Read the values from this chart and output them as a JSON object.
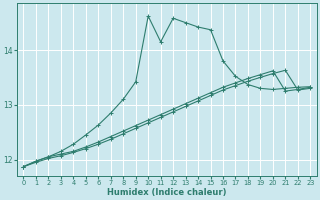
{
  "xlabel": "Humidex (Indice chaleur)",
  "bg_color": "#cce8ee",
  "grid_color": "#ffffff",
  "line_color": "#2e7d6e",
  "xlim": [
    -0.5,
    23.5
  ],
  "ylim": [
    11.7,
    14.85
  ],
  "yticks": [
    12,
    13,
    14
  ],
  "xticks": [
    0,
    1,
    2,
    3,
    4,
    5,
    6,
    7,
    8,
    9,
    10,
    11,
    12,
    13,
    14,
    15,
    16,
    17,
    18,
    19,
    20,
    21,
    22,
    23
  ],
  "curve1_x": [
    0,
    1,
    2,
    3,
    4,
    5,
    6,
    7,
    8,
    9,
    10,
    11,
    12,
    13,
    14,
    15,
    16,
    17,
    18,
    19,
    20,
    21,
    22,
    23
  ],
  "curve1_y": [
    11.87,
    11.97,
    12.05,
    12.1,
    12.15,
    12.23,
    12.32,
    12.42,
    12.52,
    12.62,
    12.72,
    12.82,
    12.92,
    13.02,
    13.12,
    13.22,
    13.32,
    13.4,
    13.48,
    13.55,
    13.62,
    13.25,
    13.28,
    13.32
  ],
  "curve2_x": [
    0,
    1,
    2,
    3,
    4,
    5,
    6,
    7,
    8,
    9,
    10,
    11,
    12,
    13,
    14,
    15,
    16,
    17,
    18,
    19,
    20,
    21,
    22,
    23
  ],
  "curve2_y": [
    11.87,
    11.95,
    12.02,
    12.07,
    12.13,
    12.2,
    12.28,
    12.37,
    12.47,
    12.57,
    12.67,
    12.77,
    12.87,
    12.97,
    13.07,
    13.17,
    13.27,
    13.35,
    13.43,
    13.5,
    13.57,
    13.63,
    13.27,
    13.3
  ],
  "curve3_x": [
    0,
    1,
    2,
    3,
    4,
    5,
    6,
    7,
    8,
    9,
    10,
    11,
    12,
    13,
    14,
    15,
    16,
    17,
    18,
    19,
    20,
    21,
    22,
    23
  ],
  "curve3_y": [
    11.87,
    11.97,
    12.05,
    12.15,
    12.28,
    12.45,
    12.63,
    12.85,
    13.1,
    13.42,
    14.62,
    14.15,
    14.58,
    14.5,
    14.42,
    14.37,
    13.8,
    13.52,
    13.37,
    13.3,
    13.28,
    13.3,
    13.32,
    13.33
  ]
}
